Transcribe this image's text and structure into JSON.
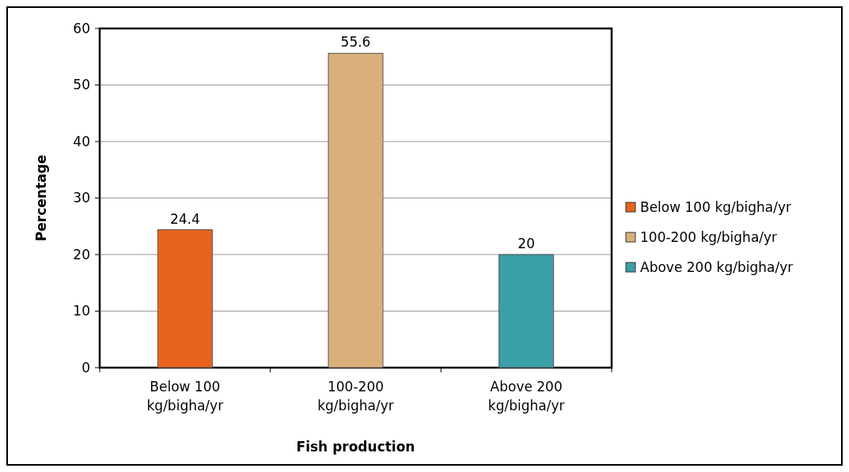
{
  "chart_data": {
    "type": "bar",
    "xlabel": "Fish production",
    "ylabel": "Percentage",
    "categories": [
      "Below 100 kg/bigha/yr",
      "100-200 kg/bigha/yr",
      "Above 200 kg/bigha/yr"
    ],
    "series": [
      {
        "name": "Below 100 kg/bigha/yr",
        "color": "#e8641e",
        "values": [
          24.4,
          null,
          null
        ]
      },
      {
        "name": "100-200 kg/bigha/yr",
        "color": "#d9b07a",
        "values": [
          null,
          55.6,
          null
        ]
      },
      {
        "name": "Above 200 kg/bigha/yr",
        "color": "#3a9fa8",
        "values": [
          null,
          null,
          20
        ]
      }
    ],
    "stacked": true,
    "ylim": [
      0,
      60
    ],
    "yticks": [
      0,
      10,
      20,
      30,
      40,
      50,
      60
    ],
    "grid": "y",
    "legend": "right",
    "data_labels": true
  }
}
